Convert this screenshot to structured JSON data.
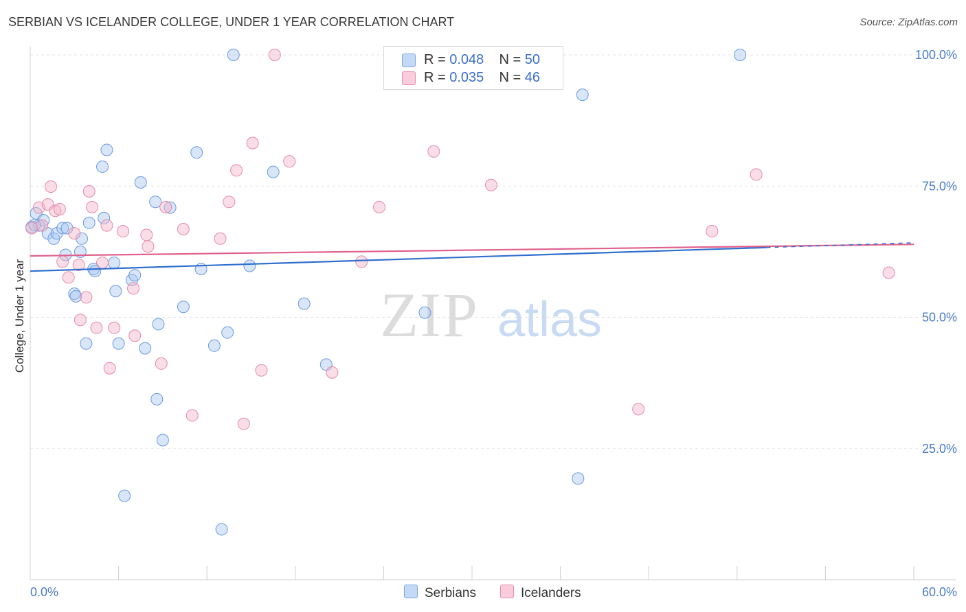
{
  "title": "SERBIAN VS ICELANDER COLLEGE, UNDER 1 YEAR CORRELATION CHART",
  "source": "Source: ZipAtlas.com",
  "watermark": {
    "zip": "ZIP",
    "atlas": "atlas"
  },
  "legend": {
    "rows": [
      {
        "r_label": "R = ",
        "r_value": "0.048",
        "n_label": "N = ",
        "n_value": "50",
        "color": "#a9c8f0"
      },
      {
        "r_label": "R = ",
        "r_value": "0.035",
        "n_label": "N = ",
        "n_value": "46",
        "color": "#f5b6c9"
      }
    ]
  },
  "bottom_legend": {
    "serbians": "Serbians",
    "icelanders": "Icelanders"
  },
  "chart_data": {
    "type": "scatter",
    "title": "SERBIAN VS ICELANDER COLLEGE, UNDER 1 YEAR CORRELATION CHART",
    "xlabel": "",
    "ylabel": "College, Under 1 year",
    "xlim": [
      0,
      60
    ],
    "ylim": [
      0,
      100
    ],
    "x_tick_labels": [
      "0.0%",
      "60.0%"
    ],
    "y_ticks": [
      25,
      50,
      75,
      100
    ],
    "y_tick_labels": [
      "25.0%",
      "50.0%",
      "75.0%",
      "100.0%"
    ],
    "grid": true,
    "series": [
      {
        "name": "Serbians",
        "color": "#a9c8f0",
        "stroke": "#6a9ae0",
        "trend": {
          "x0": 0,
          "y0": 58.8,
          "x1": 50.0,
          "y1": 63.3,
          "color": "#2f6fce"
        },
        "points": [
          [
            0.1,
            67.2
          ],
          [
            0.4,
            69.8
          ],
          [
            0.6,
            67.5
          ],
          [
            0.9,
            68.5
          ],
          [
            1.2,
            66.0
          ],
          [
            1.6,
            65.0
          ],
          [
            1.8,
            66.0
          ],
          [
            2.2,
            67.0
          ],
          [
            2.4,
            61.9
          ],
          [
            2.5,
            67.0
          ],
          [
            3.0,
            54.5
          ],
          [
            3.1,
            54.0
          ],
          [
            3.4,
            62.5
          ],
          [
            3.5,
            65.0
          ],
          [
            3.8,
            45.0
          ],
          [
            4.0,
            68.0
          ],
          [
            4.3,
            59.2
          ],
          [
            4.4,
            58.8
          ],
          [
            4.9,
            78.7
          ],
          [
            5.0,
            68.9
          ],
          [
            5.2,
            81.9
          ],
          [
            5.7,
            60.4
          ],
          [
            5.8,
            55.0
          ],
          [
            6.0,
            45.0
          ],
          [
            6.4,
            16.0
          ],
          [
            6.9,
            57.1
          ],
          [
            7.1,
            58.0
          ],
          [
            7.5,
            75.7
          ],
          [
            7.8,
            44.1
          ],
          [
            8.5,
            72.0
          ],
          [
            8.6,
            34.4
          ],
          [
            8.7,
            48.7
          ],
          [
            9.0,
            26.6
          ],
          [
            9.5,
            70.9
          ],
          [
            10.4,
            52.0
          ],
          [
            11.3,
            81.4
          ],
          [
            11.6,
            59.2
          ],
          [
            12.5,
            44.6
          ],
          [
            13.0,
            9.6
          ],
          [
            13.4,
            47.1
          ],
          [
            13.8,
            100.0
          ],
          [
            14.9,
            59.8
          ],
          [
            16.5,
            77.7
          ],
          [
            18.6,
            52.6
          ],
          [
            20.1,
            41.0
          ],
          [
            26.8,
            50.9
          ],
          [
            37.2,
            19.3
          ],
          [
            37.5,
            92.4
          ],
          [
            48.2,
            100.0
          ],
          [
            0.3,
            67.6
          ]
        ]
      },
      {
        "name": "Icelanders",
        "color": "#f5b6c9",
        "stroke": "#e48aa6",
        "trend": {
          "x0": 0,
          "y0": 61.7,
          "x1": 60.0,
          "y1": 63.9,
          "color": "#e0618b"
        },
        "points": [
          [
            0.1,
            67.0
          ],
          [
            0.6,
            70.9
          ],
          [
            0.8,
            67.5
          ],
          [
            1.2,
            71.5
          ],
          [
            1.4,
            74.9
          ],
          [
            1.7,
            70.3
          ],
          [
            2.0,
            70.6
          ],
          [
            2.2,
            60.6
          ],
          [
            2.6,
            57.6
          ],
          [
            3.0,
            66.0
          ],
          [
            3.3,
            60.0
          ],
          [
            3.4,
            49.5
          ],
          [
            3.8,
            53.8
          ],
          [
            4.0,
            74.0
          ],
          [
            4.2,
            71.0
          ],
          [
            4.5,
            48.0
          ],
          [
            4.9,
            60.4
          ],
          [
            5.2,
            67.5
          ],
          [
            5.4,
            40.3
          ],
          [
            5.7,
            48.0
          ],
          [
            6.3,
            66.4
          ],
          [
            7.0,
            55.5
          ],
          [
            7.1,
            46.5
          ],
          [
            7.9,
            65.7
          ],
          [
            8.0,
            63.5
          ],
          [
            8.9,
            41.2
          ],
          [
            9.2,
            71.0
          ],
          [
            10.4,
            66.8
          ],
          [
            11.0,
            31.3
          ],
          [
            12.9,
            65.0
          ],
          [
            13.5,
            72.0
          ],
          [
            14.0,
            78.0
          ],
          [
            14.5,
            29.7
          ],
          [
            15.1,
            83.2
          ],
          [
            15.7,
            39.9
          ],
          [
            16.6,
            100.0
          ],
          [
            17.6,
            79.7
          ],
          [
            20.5,
            39.5
          ],
          [
            22.5,
            60.6
          ],
          [
            23.7,
            71.0
          ],
          [
            27.4,
            81.6
          ],
          [
            31.3,
            75.2
          ],
          [
            41.3,
            32.5
          ],
          [
            46.3,
            66.4
          ],
          [
            49.3,
            77.2
          ],
          [
            58.3,
            58.5
          ]
        ]
      }
    ]
  }
}
